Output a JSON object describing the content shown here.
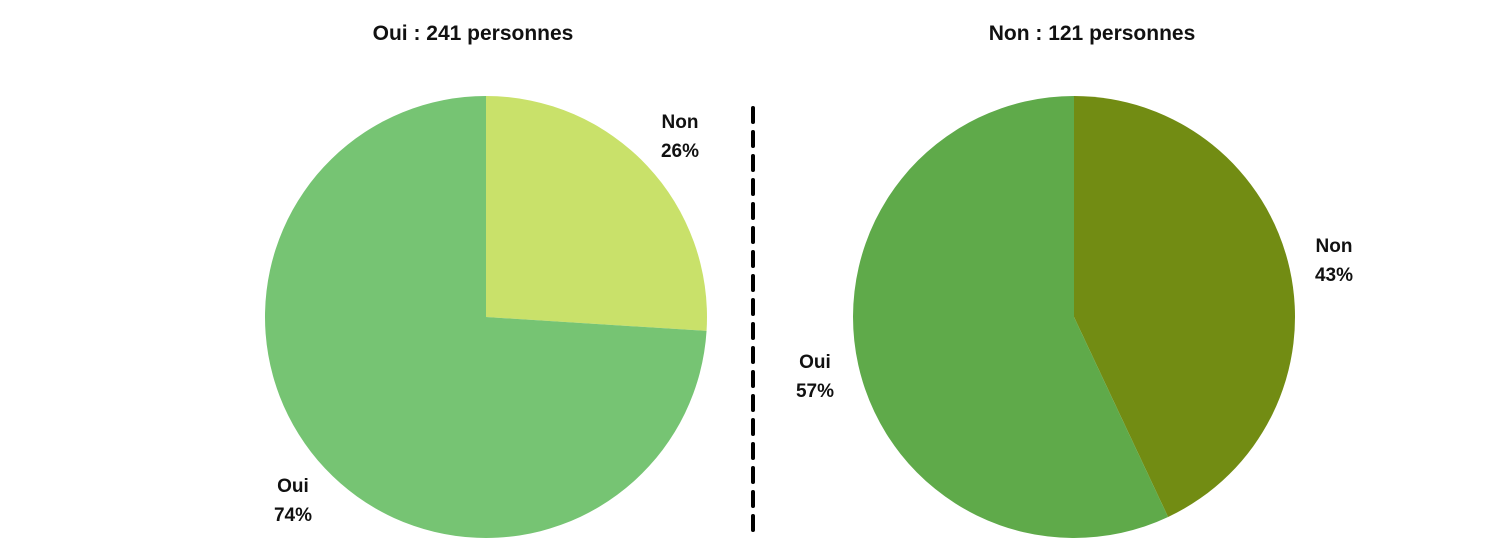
{
  "chart_data": [
    {
      "type": "pie",
      "title": "Oui : 241 personnes",
      "slices": [
        {
          "label": "Non",
          "value": 26,
          "value_label": "26%",
          "color": "#c9e16a"
        },
        {
          "label": "Oui",
          "value": 74,
          "value_label": "74%",
          "color": "#76c473"
        }
      ]
    },
    {
      "type": "pie",
      "title": "Non : 121 personnes",
      "slices": [
        {
          "label": "Non",
          "value": 43,
          "value_label": "43%",
          "color": "#728c13"
        },
        {
          "label": "Oui",
          "value": 57,
          "value_label": "57%",
          "color": "#5faa4a"
        }
      ]
    }
  ],
  "divider": {
    "style": "dashed",
    "color": "#000000"
  }
}
